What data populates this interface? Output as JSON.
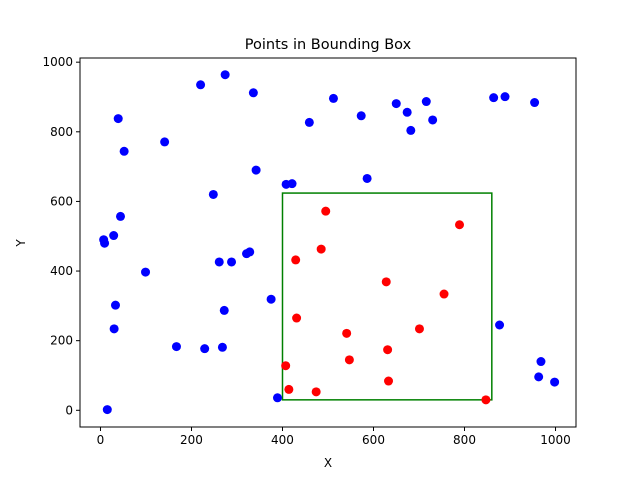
{
  "chart_data": {
    "type": "scatter",
    "title": "Points in Bounding Box",
    "xlabel": "X",
    "ylabel": "Y",
    "xlim": [
      -45,
      1045
    ],
    "ylim": [
      -48,
      1012
    ],
    "xticks": [
      0,
      200,
      400,
      600,
      800,
      1000
    ],
    "yticks": [
      0,
      200,
      400,
      600,
      800,
      1000
    ],
    "grid": false,
    "bounding_box": {
      "x0": 400,
      "y0": 30,
      "x1": 860,
      "y1": 624,
      "color": "#008000"
    },
    "series": [
      {
        "color": "#0000ff",
        "points": [
          [
            15,
            2
          ],
          [
            7,
            490
          ],
          [
            9,
            480
          ],
          [
            29,
            502
          ],
          [
            30,
            234
          ],
          [
            33,
            302
          ],
          [
            39,
            838
          ],
          [
            44,
            557
          ],
          [
            52,
            744
          ],
          [
            99,
            397
          ],
          [
            141,
            771
          ],
          [
            167,
            183
          ],
          [
            220,
            935
          ],
          [
            229,
            177
          ],
          [
            248,
            620
          ],
          [
            261,
            426
          ],
          [
            268,
            181
          ],
          [
            272,
            287
          ],
          [
            274,
            964
          ],
          [
            288,
            426
          ],
          [
            321,
            450
          ],
          [
            328,
            455
          ],
          [
            336,
            912
          ],
          [
            342,
            690
          ],
          [
            375,
            319
          ],
          [
            389,
            36
          ],
          [
            408,
            649
          ],
          [
            421,
            651
          ],
          [
            459,
            827
          ],
          [
            512,
            896
          ],
          [
            573,
            846
          ],
          [
            586,
            666
          ],
          [
            650,
            881
          ],
          [
            674,
            856
          ],
          [
            682,
            804
          ],
          [
            716,
            887
          ],
          [
            730,
            834
          ],
          [
            864,
            898
          ],
          [
            889,
            901
          ],
          [
            877,
            245
          ],
          [
            954,
            884
          ],
          [
            963,
            96
          ],
          [
            968,
            140
          ],
          [
            998,
            81
          ]
        ]
      },
      {
        "color": "#ff0000",
        "points": [
          [
            407,
            128
          ],
          [
            414,
            60
          ],
          [
            429,
            432
          ],
          [
            431,
            265
          ],
          [
            474,
            53
          ],
          [
            485,
            463
          ],
          [
            495,
            572
          ],
          [
            541,
            221
          ],
          [
            547,
            145
          ],
          [
            628,
            369
          ],
          [
            631,
            174
          ],
          [
            633,
            84
          ],
          [
            701,
            234
          ],
          [
            755,
            334
          ],
          [
            789,
            533
          ],
          [
            847,
            30
          ]
        ]
      }
    ]
  }
}
